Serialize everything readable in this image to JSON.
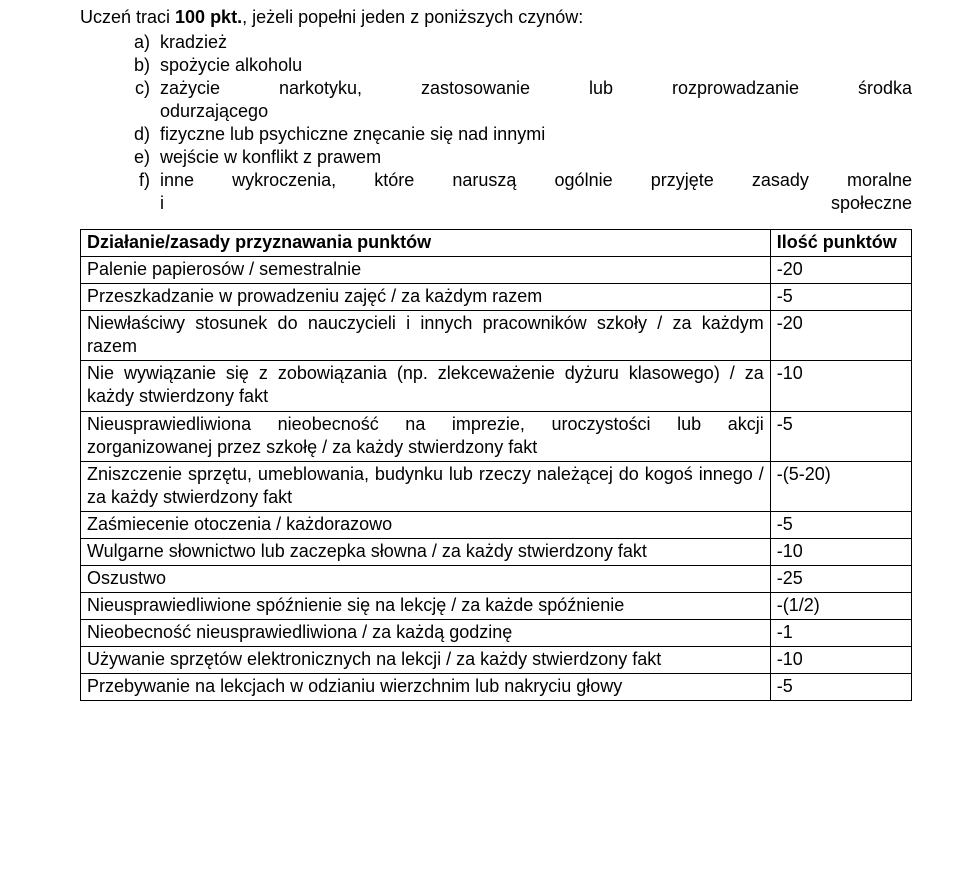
{
  "intro": {
    "line_prefix": "Uczeń traci ",
    "line_bold": "100 pkt.",
    "line_suffix": ", jeżeli popełni jeden z poniższych czynów:"
  },
  "offence_list": [
    {
      "marker": "a)",
      "text": "kradzież",
      "justify": false
    },
    {
      "marker": "b)",
      "text": "spożycie alkoholu",
      "justify": false
    },
    {
      "marker": "c)",
      "text": "zażycie narkotyku, zastosowanie lub rozprowadzanie środka odurzającego",
      "justify": true
    },
    {
      "marker": "d)",
      "text": "fizyczne lub psychiczne znęcanie się nad innymi",
      "justify": false
    },
    {
      "marker": "e)",
      "text": "wejście w konflikt z prawem",
      "justify": false
    },
    {
      "marker": "f)",
      "text": "inne wykroczenia, które naruszą ogólnie przyjęte zasady moralne i społeczne",
      "justify": true
    }
  ],
  "table": {
    "header_desc": "Działanie/zasady przyznawania punktów",
    "header_pts": "Ilość punktów",
    "rows": [
      {
        "desc": "Palenie papierosów / semestralnie",
        "pts": "-20"
      },
      {
        "desc": "Przeszkadzanie w prowadzeniu zajęć / za każdym razem",
        "pts": "-5"
      },
      {
        "desc": "Niewłaściwy stosunek do nauczycieli i innych pracowników szkoły / za każdym razem",
        "pts": "-20"
      },
      {
        "desc": "Nie wywiązanie się z zobowiązania (np. zlekceważenie dyżuru klasowego) / za każdy stwierdzony fakt",
        "pts": "-10"
      },
      {
        "desc": "Nieusprawiedliwiona nieobecność na imprezie, uroczystości lub akcji zorganizowanej przez szkołę / za każdy stwierdzony fakt",
        "pts": "-5"
      },
      {
        "desc": "Zniszczenie sprzętu, umeblowania, budynku lub rzeczy należącej do kogoś innego / za każdy stwierdzony fakt",
        "pts": "-(5-20)"
      },
      {
        "desc": "Zaśmiecenie otoczenia / każdorazowo",
        "pts": "-5"
      },
      {
        "desc": "Wulgarne słownictwo lub zaczepka słowna / za każdy stwierdzony fakt",
        "pts": "-10"
      },
      {
        "desc": "Oszustwo",
        "pts": "-25"
      },
      {
        "desc": "Nieusprawiedliwione spóźnienie się na lekcję / za każde spóźnienie",
        "pts": "-(1/2)"
      },
      {
        "desc": "Nieobecność nieusprawiedliwiona / za każdą godzinę",
        "pts": "-1"
      },
      {
        "desc": "Używanie sprzętów elektronicznych na lekcji / za każdy stwierdzony fakt",
        "pts": "-10"
      },
      {
        "desc": "Przebywanie na lekcjach w odzianiu wierzchnim lub nakryciu głowy",
        "pts": "-5"
      }
    ]
  }
}
